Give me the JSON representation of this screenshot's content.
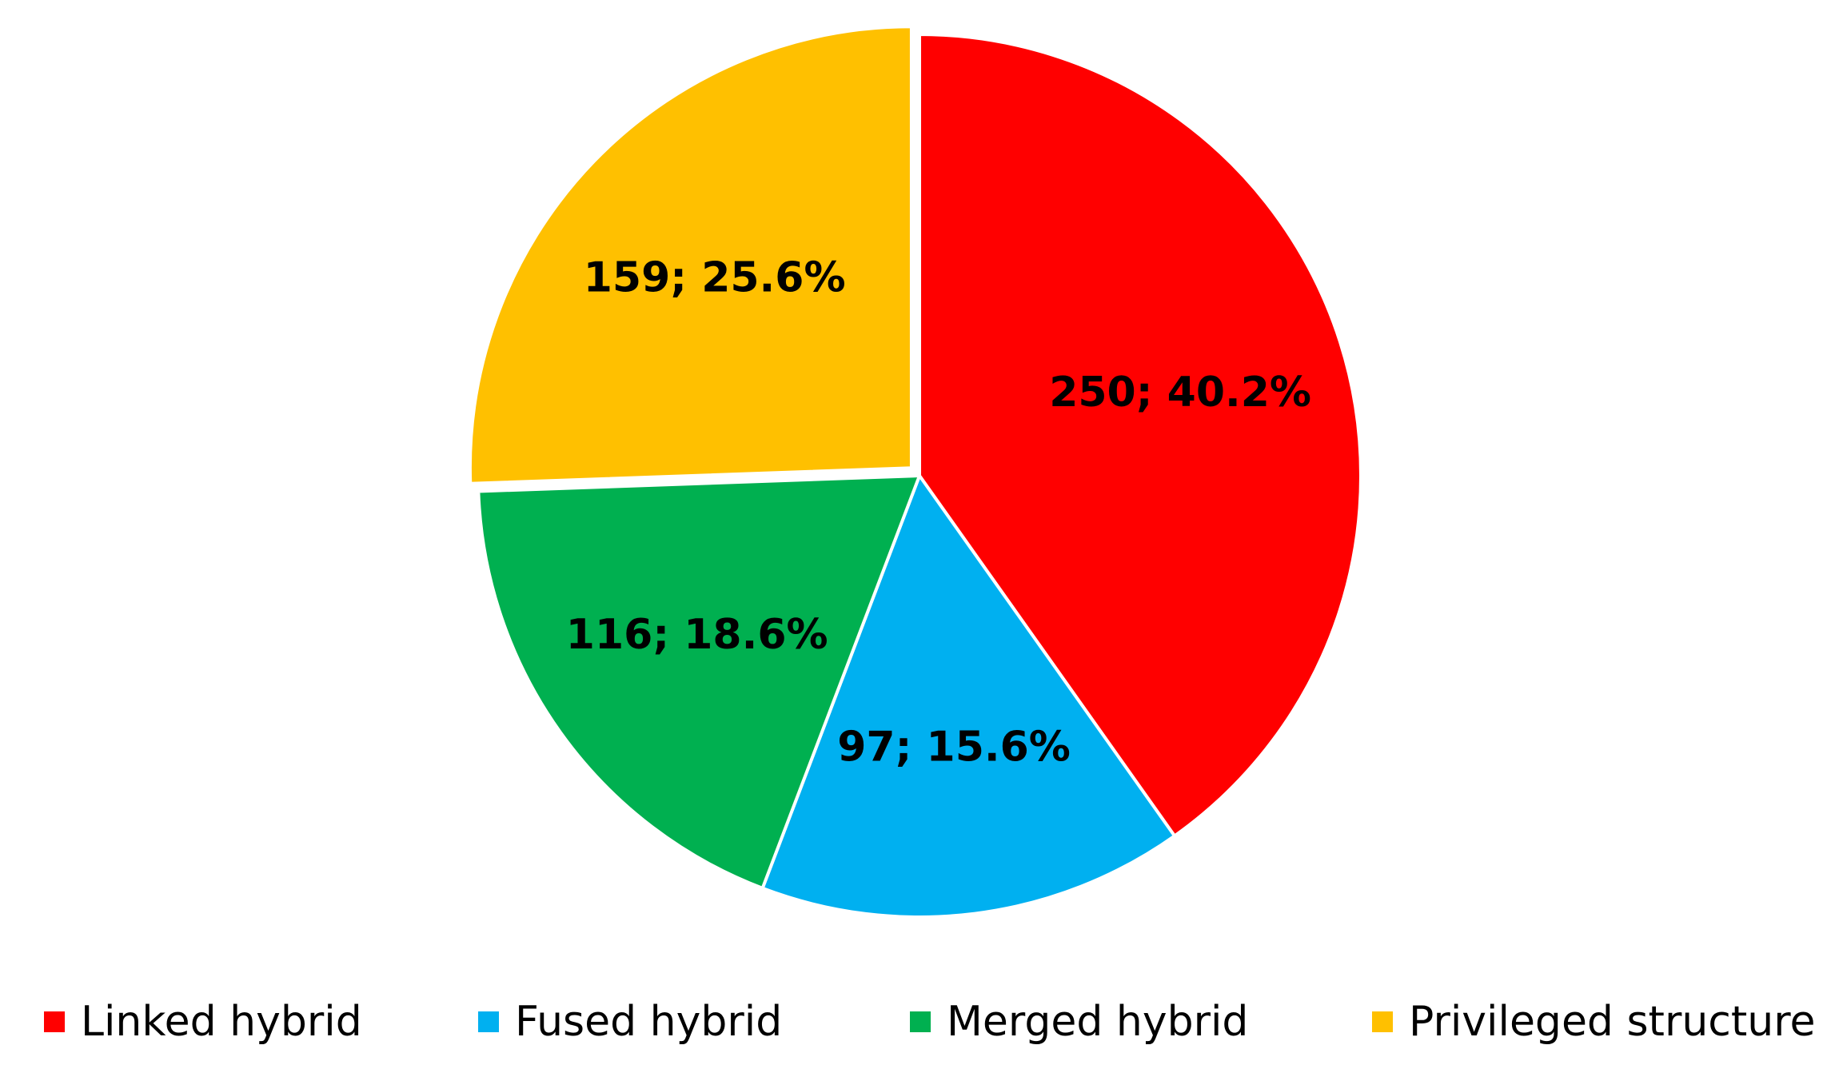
{
  "chart_data": {
    "type": "pie",
    "title": "",
    "categories": [
      "Linked hybrid",
      "Fused hybrid",
      "Merged hybrid",
      "Privileged structure"
    ],
    "values": [
      250,
      97,
      116,
      159
    ],
    "percentages": [
      40.2,
      15.6,
      18.6,
      25.6
    ],
    "data_labels": [
      "250; 40.2%",
      "97; 15.6%",
      "116; 18.6%",
      "159; 25.6%"
    ],
    "colors": [
      "#FF0000",
      "#00B0F0",
      "#00B050",
      "#FFC000"
    ],
    "slice_border_color": "#FFFFFF",
    "exploded_slice": "Privileged structure",
    "start_angle_deg": 0,
    "direction": "clockwise",
    "legend": {
      "placement": "bottom",
      "entries": [
        "Linked hybrid",
        "Fused hybrid",
        "Merged hybrid",
        "Privileged structure"
      ]
    }
  }
}
